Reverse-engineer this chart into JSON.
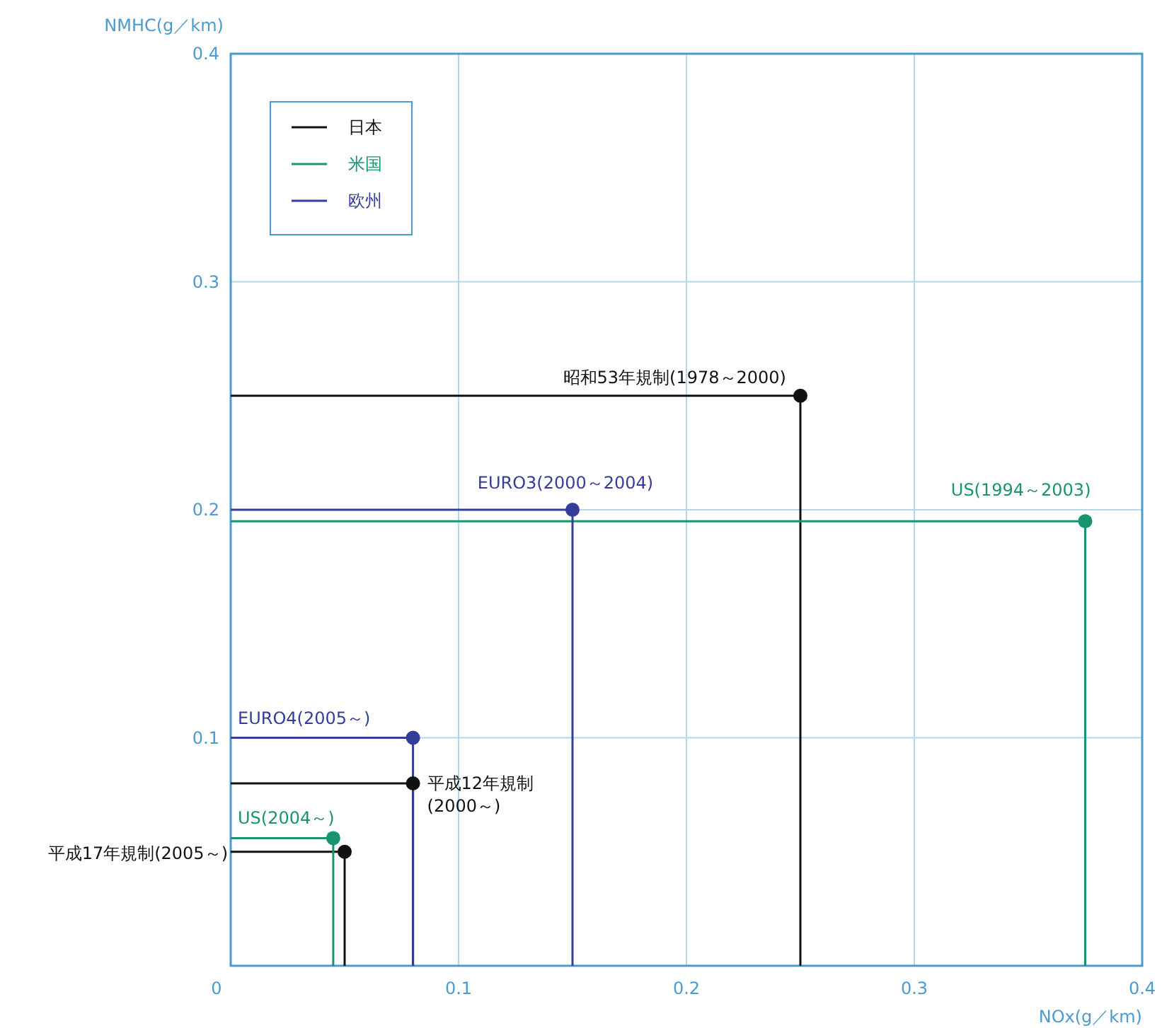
{
  "chart_data": {
    "type": "scatter",
    "xlabel": "NOx(g／km)",
    "ylabel": "NMHC(g／km)",
    "xlim": [
      0,
      0.4
    ],
    "ylim": [
      0,
      0.4
    ],
    "xticks": [
      0,
      0.1,
      0.2,
      0.3,
      0.4
    ],
    "yticks": [
      {
        "value": 0,
        "label": null
      },
      0.1,
      0.2,
      0.3,
      0.4
    ],
    "grid": true,
    "legend": "top left",
    "marker": "circle",
    "series": [
      {
        "name": "日本",
        "color": "#111111",
        "x": [
          0.25,
          0.08,
          0.05
        ],
        "values": [
          0.25,
          0.08,
          0.05
        ]
      },
      {
        "name": "米国",
        "color": "#1a9470",
        "x": [
          0.375,
          0.045
        ],
        "values": [
          0.195,
          0.056
        ]
      },
      {
        "name": "欧州",
        "color": "#353d9a",
        "x": [
          0.15,
          0.08
        ],
        "values": [
          0.2,
          0.1
        ]
      },
      {
        "type": "line",
        "marker": "none",
        "color": "#111111",
        "x": [
          0,
          0.25,
          0.25
        ],
        "values": [
          0.25,
          0.25,
          0
        ]
      },
      {
        "type": "line",
        "marker": "none",
        "color": "#111111",
        "x": [
          0,
          0.08,
          0.08
        ],
        "values": [
          0.08,
          0.08,
          0
        ]
      },
      {
        "type": "line",
        "marker": "none",
        "color": "#111111",
        "x": [
          0,
          0.05,
          0.05
        ],
        "values": [
          0.05,
          0.05,
          0
        ]
      },
      {
        "type": "line",
        "marker": "none",
        "color": "#1a9470",
        "x": [
          0,
          0.375,
          0.375
        ],
        "values": [
          0.195,
          0.195,
          0
        ]
      },
      {
        "type": "line",
        "marker": "none",
        "color": "#1a9470",
        "x": [
          0,
          0.045,
          0.045
        ],
        "values": [
          0.056,
          0.056,
          0
        ]
      },
      {
        "type": "line",
        "marker": "none",
        "color": "#353d9a",
        "x": [
          0,
          0.15,
          0.15
        ],
        "values": [
          0.2,
          0.2,
          0
        ]
      },
      {
        "type": "line",
        "marker": "none",
        "color": "#353d9a",
        "x": [
          0,
          0.08,
          0.08
        ],
        "values": [
          0.1,
          0.1,
          0
        ]
      }
    ],
    "annotations": [
      {
        "text": "昭和53年規制(1978～2000)",
        "x": 0.25,
        "y": 0.25
      },
      {
        "text": "EURO3(2000～2004)",
        "x": 0.15,
        "y": 0.2
      },
      {
        "text": "US(1994～2003)",
        "x": 0.375,
        "y": 0.195
      },
      {
        "text": "EURO4(2005～)",
        "x": 0.08,
        "y": 0.1
      },
      {
        "text": "平成12年規制\n(2000～)",
        "x": 0.08,
        "y": 0.08
      },
      {
        "text": "US(2004～)",
        "x": 0.045,
        "y": 0.056
      },
      {
        "text": "平成17年規制(2005～)",
        "x": 0,
        "y": 0.05
      }
    ]
  }
}
